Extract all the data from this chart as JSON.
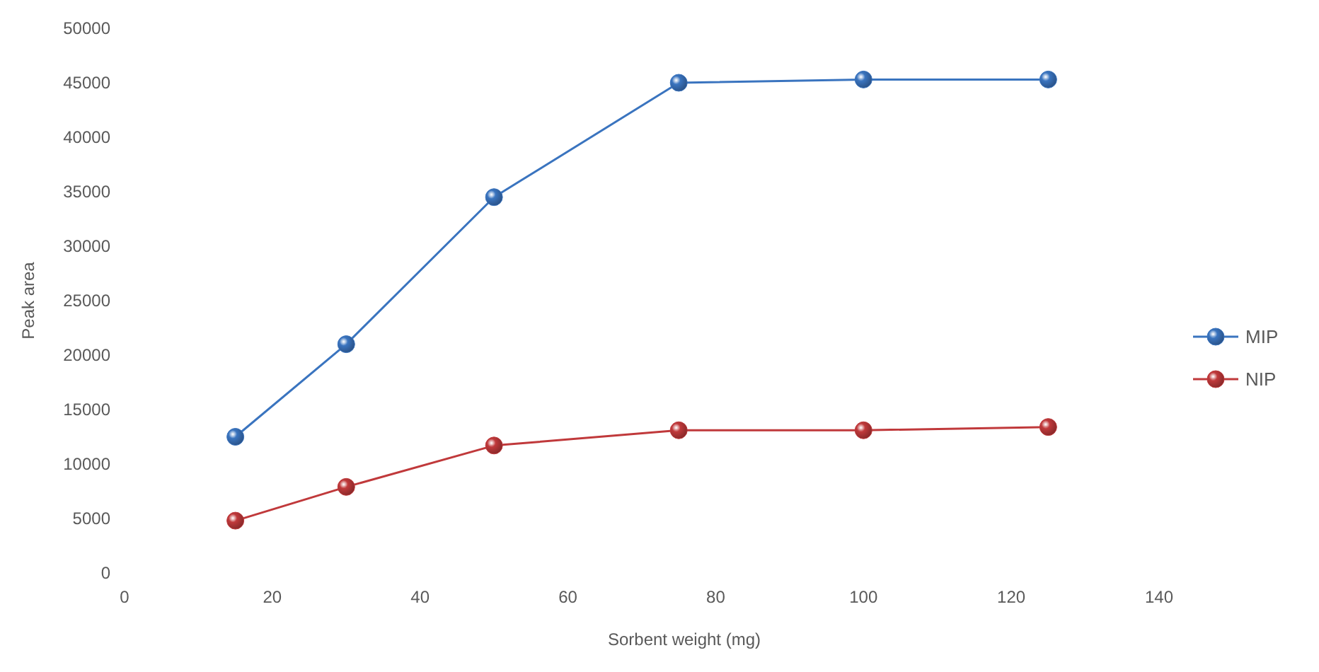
{
  "chart_data": {
    "type": "line",
    "xlabel": "Sorbent  weight (mg)",
    "ylabel": "Peak area",
    "x": [
      15,
      30,
      50,
      75,
      100,
      125
    ],
    "series": [
      {
        "name": "MIP",
        "color": "#3a74bf",
        "values": [
          12500,
          21000,
          34500,
          45000,
          45300,
          45300
        ]
      },
      {
        "name": "NIP",
        "color": "#c0393b",
        "values": [
          4800,
          7900,
          11700,
          13100,
          13100,
          13400
        ]
      }
    ],
    "xlim": [
      0,
      140
    ],
    "xticks": [
      0,
      20,
      40,
      60,
      80,
      100,
      120,
      140
    ],
    "ylim": [
      0,
      50000
    ],
    "yticks": [
      0,
      5000,
      10000,
      15000,
      20000,
      25000,
      30000,
      35000,
      40000,
      45000,
      50000
    ],
    "grid": false,
    "legend": "right",
    "marker": "circle",
    "line_style": "solid"
  }
}
